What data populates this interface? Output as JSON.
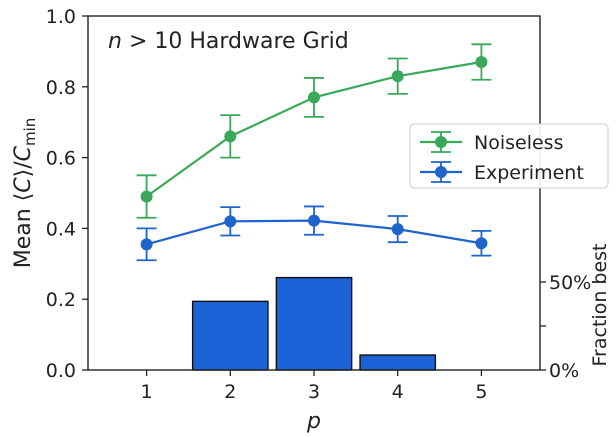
{
  "chart_data": {
    "type": "line",
    "title": "",
    "annotation": {
      "var": "n",
      "rest": " > 10 Hardware Grid"
    },
    "xlabel": "p",
    "ylabel": {
      "prefix": "Mean ⟨",
      "var1": "C",
      "mid": "⟩/",
      "var2": "C",
      "sub": "min"
    },
    "y2label": "Fraction best",
    "x": [
      1,
      2,
      3,
      4,
      5
    ],
    "xlim": [
      0.3,
      5.7
    ],
    "ylim": [
      0.0,
      1.0
    ],
    "y_ticks": [
      0.0,
      0.2,
      0.4,
      0.6,
      0.8,
      1.0
    ],
    "y_tick_labels": [
      "0.0",
      "0.2",
      "0.4",
      "0.6",
      "0.8",
      "1.0"
    ],
    "x_tick_labels": [
      "1",
      "2",
      "3",
      "4",
      "5"
    ],
    "series": [
      {
        "name": "Noiseless",
        "color": "#3aa85a",
        "values": [
          0.49,
          0.66,
          0.77,
          0.83,
          0.87
        ],
        "err": [
          0.06,
          0.06,
          0.055,
          0.05,
          0.05
        ]
      },
      {
        "name": "Experiment",
        "color": "#1f63cc",
        "values": [
          0.355,
          0.42,
          0.422,
          0.398,
          0.358
        ],
        "err": [
          0.045,
          0.04,
          0.04,
          0.037,
          0.035
        ]
      }
    ],
    "bars": {
      "name": "Fraction best",
      "color": "#1b63d6",
      "edge": "#111111",
      "values": [
        0.0,
        0.39,
        0.525,
        0.085,
        0.0
      ],
      "scale_max": 1.0,
      "y2_ticks": [
        0.0,
        0.25,
        0.5
      ],
      "y2_tick_labels": [
        "0%",
        "",
        "50%"
      ]
    },
    "legend_position": "right"
  }
}
